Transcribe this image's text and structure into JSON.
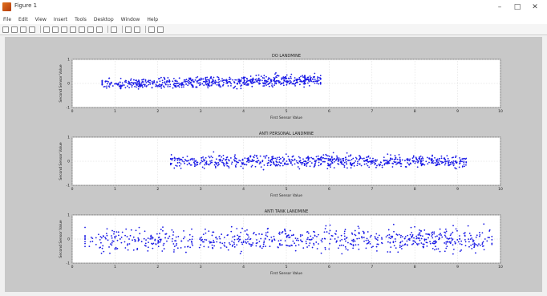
{
  "window": {
    "title": "Figure 1"
  },
  "window_controls": [
    "–",
    "□",
    "✕"
  ],
  "menu": [
    "File",
    "Edit",
    "View",
    "Insert",
    "Tools",
    "Desktop",
    "Window",
    "Help"
  ],
  "toolbar_icons": [
    "new-figure-icon",
    "open-icon",
    "save-icon",
    "print-icon",
    "sep",
    "pointer-icon",
    "zoom-in-icon",
    "zoom-out-icon",
    "pan-icon",
    "rotate-icon",
    "data-cursor-icon",
    "brush-icon",
    "sep",
    "link-icon",
    "sep",
    "colorbar-icon",
    "legend-icon",
    "sep",
    "hide-tools-icon",
    "dock-icon"
  ],
  "chart_data": [
    {
      "type": "scatter",
      "title": "DO LANDMINE",
      "xlabel": "First Sensor Value",
      "ylabel": "Second Sensor Value",
      "xlim": [
        0,
        10
      ],
      "ylim": [
        -1,
        1
      ],
      "xticks": [
        "0",
        "1",
        "2",
        "3",
        "4",
        "5",
        "6",
        "7",
        "8",
        "9",
        "10"
      ],
      "yticks": [
        "1",
        "0",
        "-1"
      ],
      "grid": true,
      "color": "#1a1ae6",
      "cluster": {
        "x_range": [
          0.7,
          5.8
        ],
        "y_center": 0.05,
        "y_slope": 0.1,
        "spread": 0.25,
        "points": 700
      }
    },
    {
      "type": "scatter",
      "title": "ANTI PERSONAL LANDMINE",
      "xlabel": "First Sensor Value",
      "ylabel": "Second Sensor Value",
      "xlim": [
        0,
        10
      ],
      "ylim": [
        -1,
        1
      ],
      "xticks": [
        "0",
        "1",
        "2",
        "3",
        "4",
        "5",
        "6",
        "7",
        "8",
        "9",
        "10"
      ],
      "yticks": [
        "1",
        "0",
        "-1"
      ],
      "grid": true,
      "color": "#1a1ae6",
      "cluster": {
        "x_range": [
          2.3,
          9.2
        ],
        "y_center": 0.0,
        "y_slope": 0.0,
        "spread": 0.3,
        "points": 750
      }
    },
    {
      "type": "scatter",
      "title": "ANTI TANK LANDMINE",
      "xlabel": "First Sensor Value",
      "ylabel": "Second Sensor Value",
      "xlim": [
        0,
        10
      ],
      "ylim": [
        -1,
        1
      ],
      "xticks": [
        "0",
        "1",
        "2",
        "3",
        "4",
        "5",
        "6",
        "7",
        "8",
        "9",
        "10"
      ],
      "yticks": [
        "1",
        "0",
        "-1"
      ],
      "grid": true,
      "color": "#1a1ae6",
      "cluster": {
        "x_range": [
          0.3,
          9.8
        ],
        "y_center": 0.0,
        "y_slope": 0.0,
        "spread": 0.55,
        "points": 750
      }
    }
  ]
}
